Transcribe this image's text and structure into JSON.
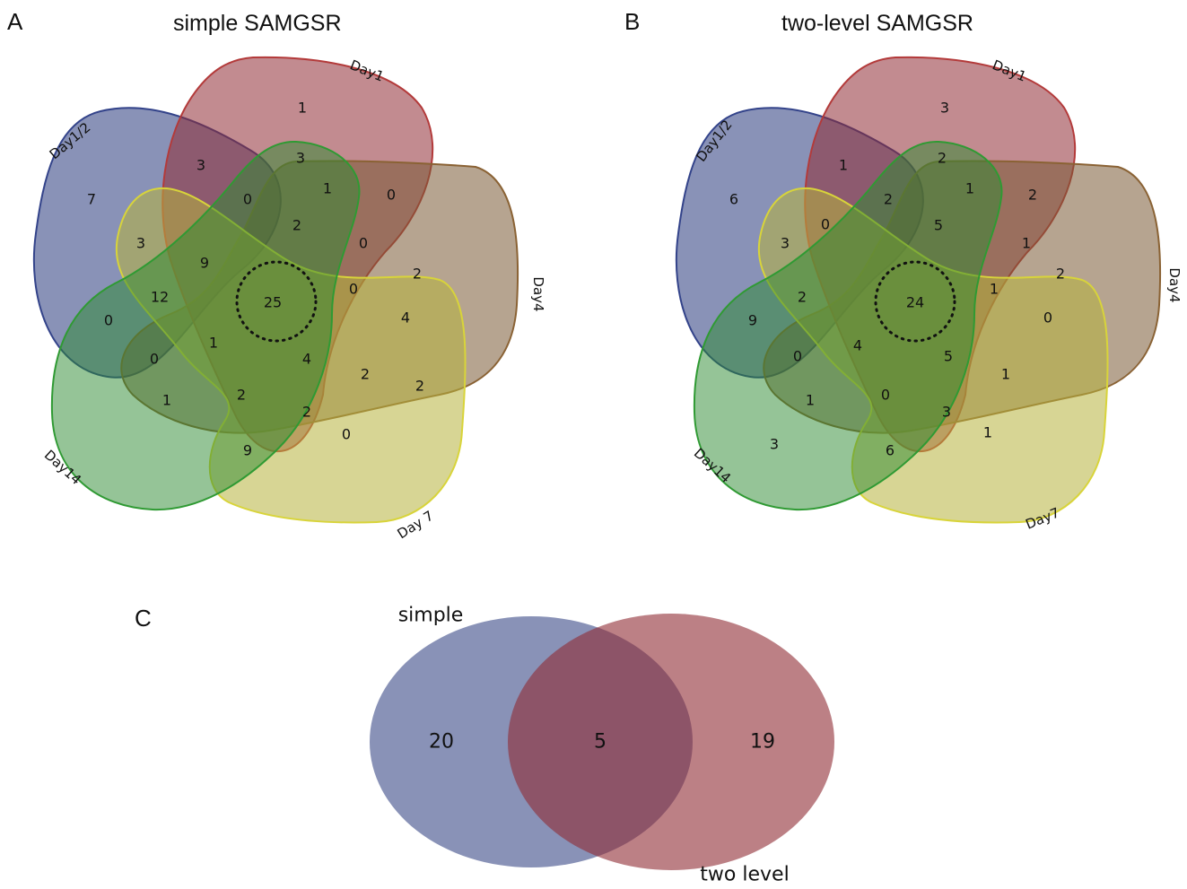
{
  "colors": {
    "blue": "#3a4a87",
    "red": "#8f2b34",
    "green": "#2c8a2f",
    "brown": "#7a5a34",
    "yellow": "#b6b23c"
  },
  "panel_a": {
    "label": "A",
    "title": "simple SAMGSR",
    "set_labels": {
      "day1_2": "Day1/2",
      "day1": "Day1",
      "day4": "Day4",
      "day7": "Day 7",
      "day14": "Day14"
    },
    "values": [
      "1",
      "3",
      "7",
      "3",
      "1",
      "0",
      "0",
      "2",
      "9",
      "3",
      "12",
      "0",
      "0",
      "0",
      "1",
      "1",
      "2",
      "9",
      "2",
      "0",
      "4",
      "2",
      "4",
      "0",
      "2",
      "2",
      "25"
    ]
  },
  "panel_b": {
    "label": "B",
    "title": "two-level SAMGSR",
    "set_labels": {
      "day1_2": "Day1/2",
      "day1": "Day1",
      "day4": "Day4",
      "day7": "Day7",
      "day14": "Day14"
    },
    "values": [
      "3",
      "1",
      "6",
      "2",
      "1",
      "2",
      "2",
      "5",
      "0",
      "3",
      "2",
      "9",
      "3",
      "0",
      "4",
      "1",
      "0",
      "6",
      "3",
      "1",
      "0",
      "2",
      "1",
      "1",
      "5",
      "1",
      "24"
    ]
  },
  "panel_c": {
    "label": "C",
    "left_label": "simple",
    "right_label": "two level",
    "left_only": "20",
    "both": "5",
    "right_only": "19"
  }
}
